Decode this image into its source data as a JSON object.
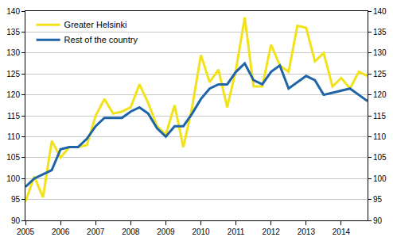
{
  "chart_data": {
    "type": "line",
    "categories": [
      "2005",
      null,
      null,
      null,
      "2006",
      null,
      null,
      null,
      "2007",
      null,
      null,
      null,
      "2008",
      null,
      null,
      null,
      "2009",
      null,
      null,
      null,
      "2010",
      null,
      null,
      null,
      "2011",
      null,
      null,
      null,
      "2012",
      null,
      null,
      null,
      "2013",
      null,
      null,
      null,
      "2014",
      null,
      null,
      null
    ],
    "series": [
      {
        "name": "Greater Helsinki",
        "color": "#f2e21c",
        "values": [
          94.5,
          100.5,
          95.5,
          109,
          105,
          107.5,
          107.5,
          108,
          115,
          119,
          115.5,
          116,
          117,
          122.5,
          118,
          112.5,
          110.5,
          117.5,
          107.5,
          117,
          129.5,
          123,
          126,
          117,
          126,
          138.5,
          122,
          122,
          132,
          127,
          125.5,
          136.5,
          136,
          128,
          130,
          122,
          124,
          121.5,
          125.5,
          124.5
        ]
      },
      {
        "name": "Rest of the country",
        "color": "#1f64a6",
        "values": [
          98,
          100,
          101,
          102,
          107,
          107.5,
          107.5,
          109.5,
          112.5,
          114.5,
          114.5,
          114.5,
          116,
          117,
          115.5,
          112,
          110,
          112.5,
          112.5,
          115.5,
          119,
          121.5,
          122.5,
          122.5,
          125.5,
          127.5,
          123.5,
          122.5,
          125.5,
          127,
          121.5,
          123,
          124.5,
          123.5,
          120,
          120.5,
          121,
          121.5,
          120,
          118.5
        ]
      }
    ],
    "ylim": [
      90,
      140
    ],
    "yticks": [
      90,
      95,
      100,
      105,
      110,
      115,
      120,
      125,
      130,
      135,
      140
    ],
    "y2lim": [
      90,
      140
    ],
    "y2ticks": [
      90,
      95,
      100,
      105,
      110,
      115,
      120,
      125,
      130,
      135,
      140
    ],
    "grid": true,
    "legend": "upper left"
  }
}
